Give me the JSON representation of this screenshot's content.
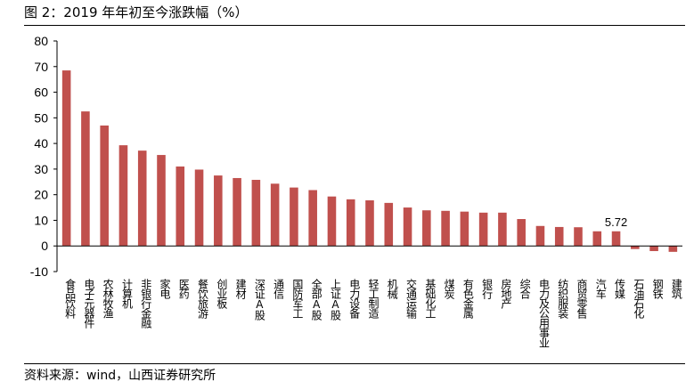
{
  "figure": {
    "title": "图 2：2019 年年初至今涨跌幅（%）",
    "source": "资料来源：wind，山西证券研究所"
  },
  "colors": {
    "bar": "#c0504d",
    "axis": "#000000"
  },
  "chart_data": {
    "type": "bar",
    "title": "图 2：2019 年年初至今涨跌幅（%）",
    "xlabel": "",
    "ylabel": "",
    "ylim": [
      -10,
      80
    ],
    "yticks": [
      -10,
      0,
      10,
      20,
      30,
      40,
      50,
      60,
      70,
      80
    ],
    "grid": false,
    "legend": "none",
    "categories": [
      "食品饮料",
      "电子元器件",
      "农林牧渔",
      "计算机",
      "非银行金融",
      "家电",
      "医药",
      "餐饮旅游",
      "创业板",
      "建材",
      "深证A股",
      "通信",
      "国防军工",
      "全部A股",
      "上证A股",
      "电力设备",
      "轻工制造",
      "机械",
      "交通运输",
      "基础化工",
      "煤炭",
      "有色金属",
      "银行",
      "房地产",
      "综合",
      "电力及公用事业",
      "纺织服装",
      "商贸零售",
      "汽车",
      "传媒",
      "石油石化",
      "钢铁",
      "建筑"
    ],
    "values": [
      68.5,
      52.5,
      47,
      39.3,
      37.2,
      35.5,
      31,
      29.8,
      27.5,
      26.5,
      25.8,
      24.3,
      22.8,
      21.8,
      19.3,
      18.2,
      17.8,
      16.8,
      15,
      13.9,
      13.7,
      13.4,
      13,
      13,
      10.5,
      7.8,
      7.4,
      7.3,
      5.72,
      5.72,
      -1.2,
      -2,
      -2.3
    ],
    "data_labels": [
      {
        "category": "传媒",
        "text": "5.72"
      }
    ]
  }
}
